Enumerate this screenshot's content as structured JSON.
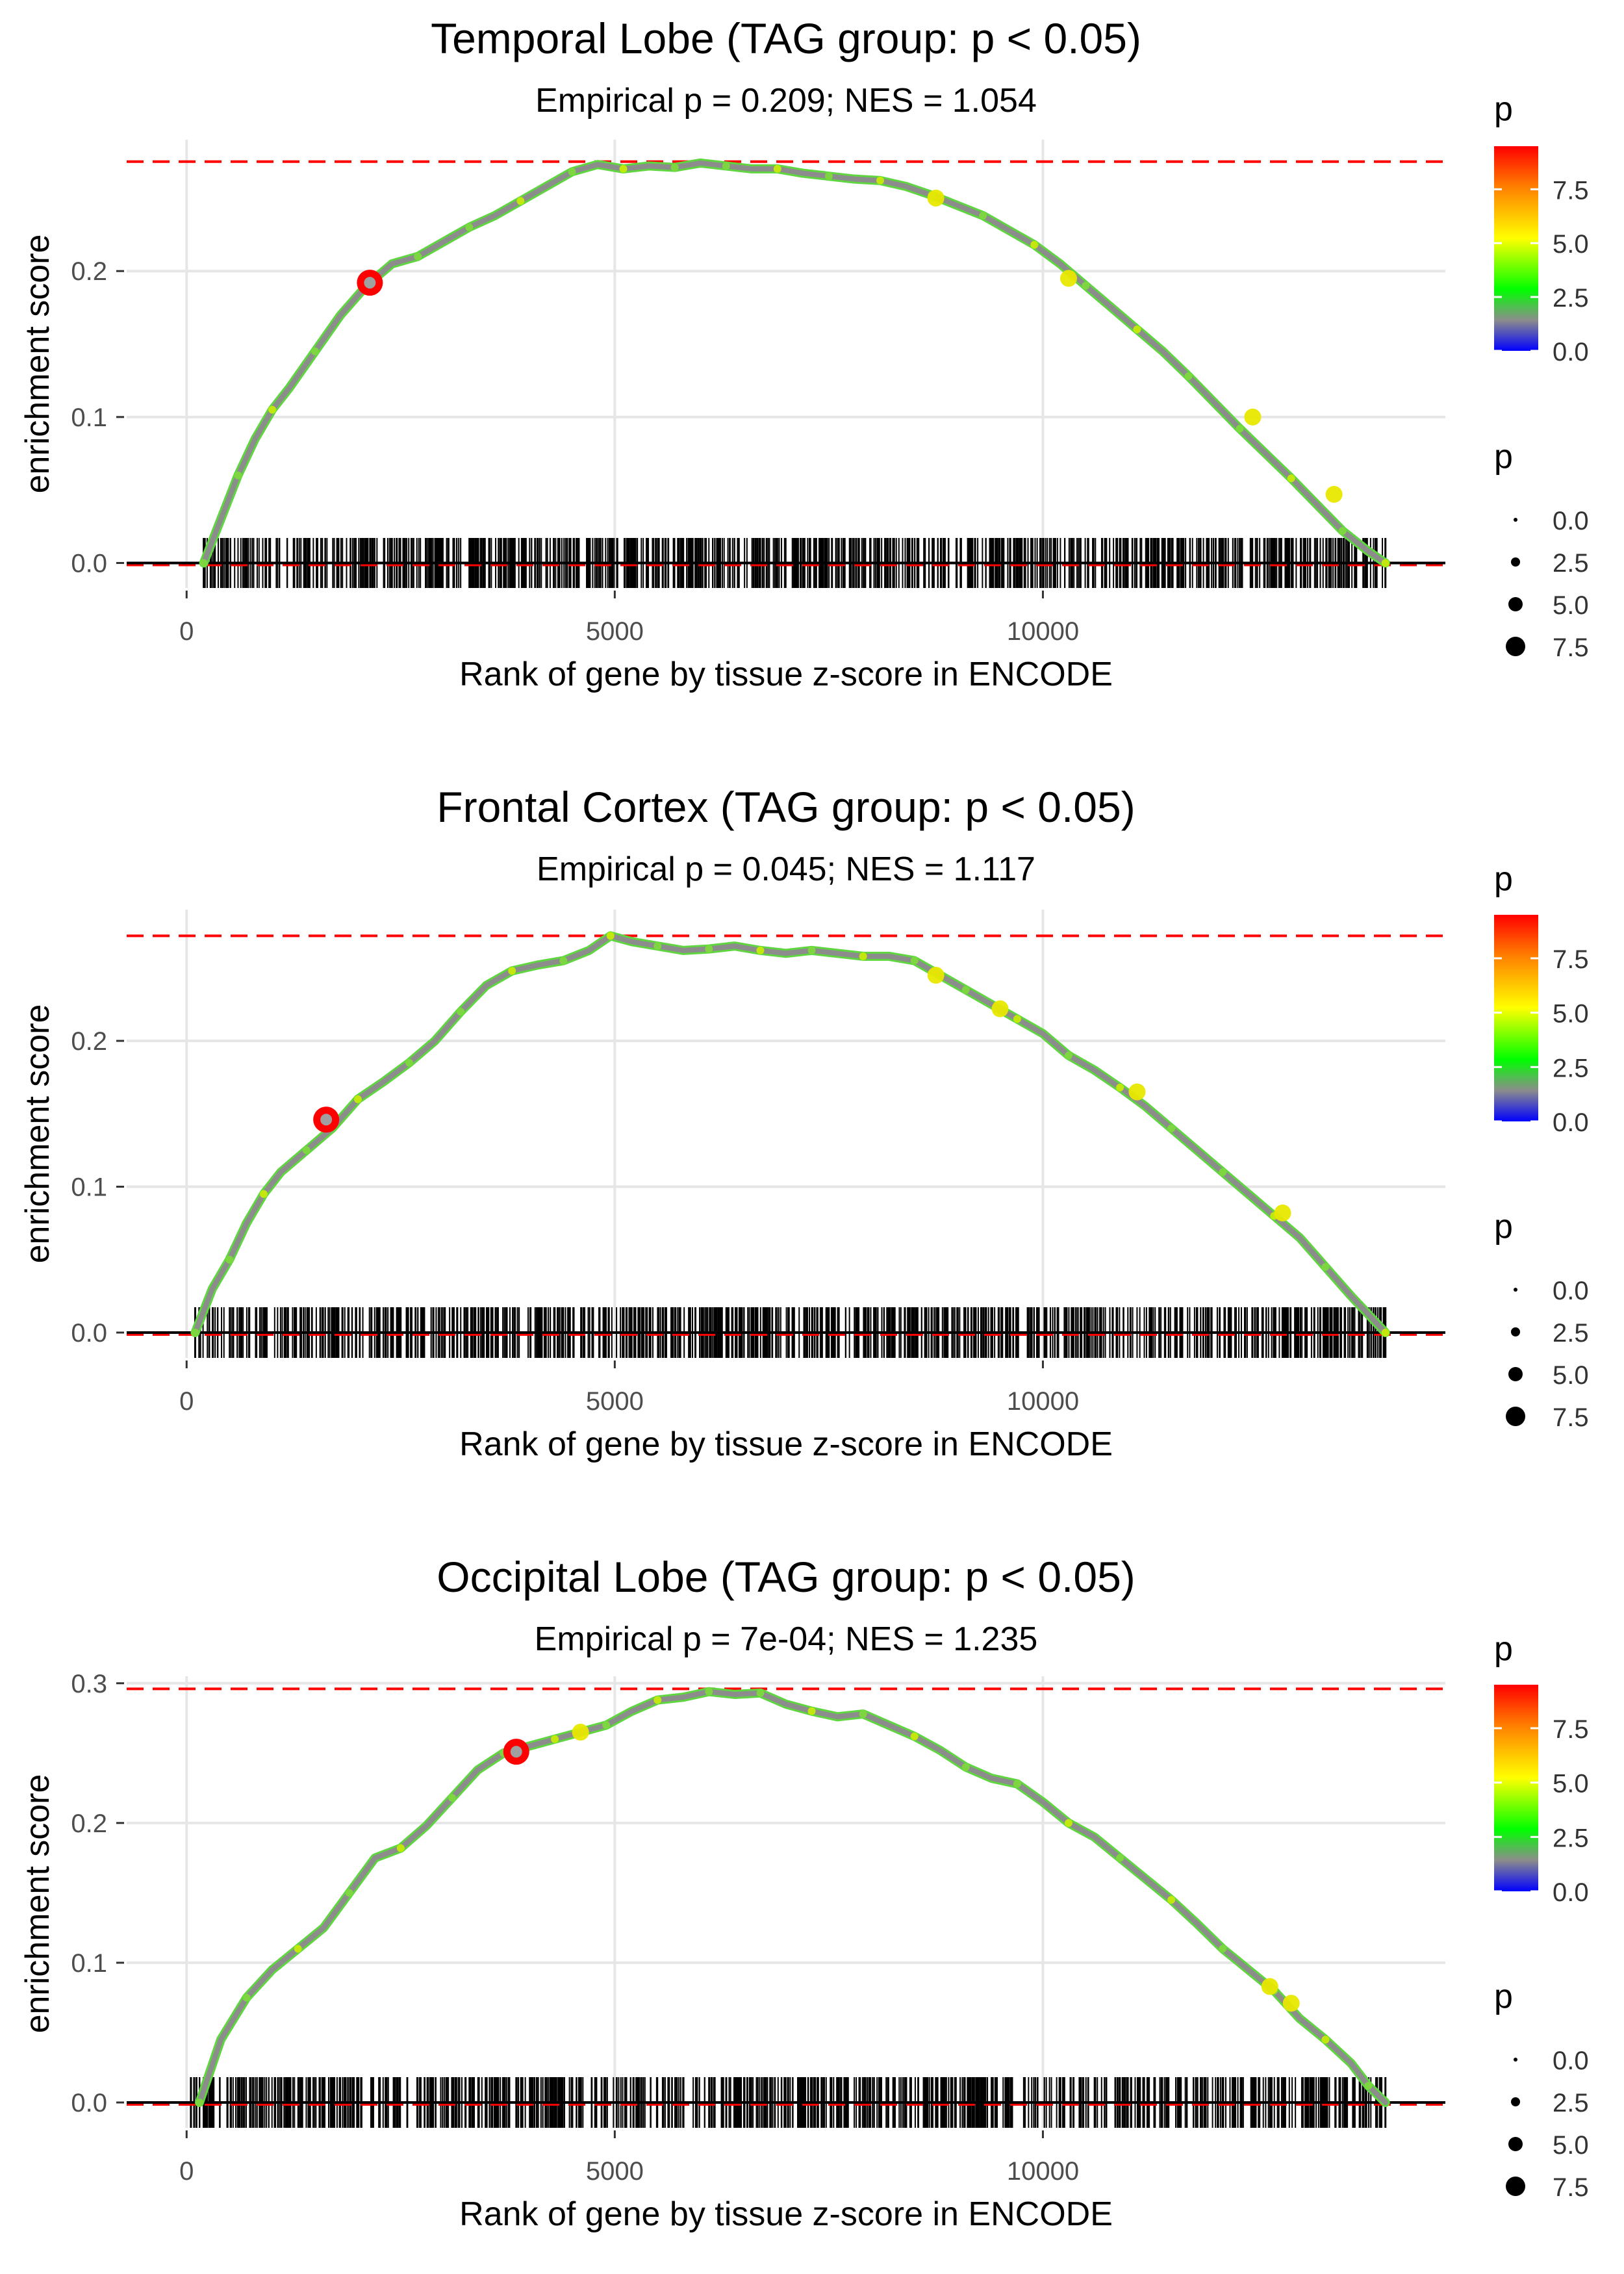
{
  "colors": {
    "background": "#ffffff",
    "grid": "#e6e6e6",
    "zero_line": "#000000",
    "max_line": "#ff0000",
    "curve": "#8c8c8c",
    "barcode": "#000000",
    "highlight_point": "#ff0000",
    "gradient": [
      "#0000ff",
      "#8c8c8c",
      "#00ff00",
      "#ffff00",
      "#ff8000",
      "#ff0000"
    ]
  },
  "chart_data": [
    {
      "type": "line",
      "title": "Temporal Lobe (TAG group: p < 0.05)",
      "subtitle": "Empirical p = 0.209; NES = 1.054",
      "xlabel": "Rank of gene by tissue z-score in ENCODE",
      "ylabel": "enrichment score",
      "xlim": [
        -700,
        14700
      ],
      "ylim": [
        -0.008,
        0.29
      ],
      "xticks": [
        0,
        5000,
        10000
      ],
      "xtick_labels": [
        "0",
        "5000",
        "10000"
      ],
      "yticks": [
        0.0,
        0.1,
        0.2
      ],
      "ytick_labels": [
        "0.0",
        "0.1",
        "0.2"
      ],
      "max_es": 0.275,
      "gene_range": [
        200,
        14000
      ],
      "series": [
        {
          "name": "running enrichment score",
          "x": [
            200,
            400,
            600,
            800,
            1000,
            1200,
            1500,
            1800,
            2100,
            2400,
            2700,
            3000,
            3300,
            3600,
            3900,
            4200,
            4500,
            4800,
            5100,
            5400,
            5700,
            6000,
            6300,
            6600,
            6900,
            7200,
            7500,
            7800,
            8100,
            8400,
            8700,
            9000,
            9300,
            9600,
            9900,
            10200,
            10500,
            10800,
            11100,
            11400,
            11700,
            12000,
            12300,
            12600,
            12900,
            13200,
            13500,
            13800,
            14000
          ],
          "y": [
            0.0,
            0.03,
            0.06,
            0.085,
            0.105,
            0.12,
            0.145,
            0.17,
            0.19,
            0.205,
            0.21,
            0.22,
            0.23,
            0.238,
            0.248,
            0.258,
            0.268,
            0.273,
            0.27,
            0.272,
            0.271,
            0.274,
            0.272,
            0.27,
            0.27,
            0.267,
            0.265,
            0.263,
            0.262,
            0.258,
            0.252,
            0.245,
            0.238,
            0.228,
            0.218,
            0.205,
            0.19,
            0.175,
            0.16,
            0.145,
            0.128,
            0.11,
            0.092,
            0.075,
            0.058,
            0.04,
            0.022,
            0.008,
            0.0
          ]
        }
      ],
      "highlight_points": [
        {
          "x": 2140,
          "y": 0.192,
          "p": 9.5
        }
      ],
      "yellow_points": [
        {
          "x": 8750,
          "y": 0.25
        },
        {
          "x": 10300,
          "y": 0.195
        },
        {
          "x": 12450,
          "y": 0.1
        },
        {
          "x": 13400,
          "y": 0.047
        }
      ],
      "legend_color": {
        "title": "p",
        "ticks": [
          0.0,
          2.5,
          5.0,
          7.5
        ],
        "tick_labels": [
          "0.0",
          "2.5",
          "5.0",
          "7.5"
        ],
        "range": [
          0,
          9.5
        ]
      },
      "legend_size": {
        "title": "p",
        "labels": [
          "0.0",
          "2.5",
          "5.0",
          "7.5"
        ]
      }
    },
    {
      "type": "line",
      "title": "Frontal Cortex (TAG group: p < 0.05)",
      "subtitle": "Empirical p = 0.045; NES = 1.117",
      "xlabel": "Rank of gene by tissue z-score in ENCODE",
      "ylabel": "enrichment score",
      "xlim": [
        -700,
        14700
      ],
      "ylim": [
        -0.008,
        0.29
      ],
      "xticks": [
        0,
        5000,
        10000
      ],
      "xtick_labels": [
        "0",
        "5000",
        "10000"
      ],
      "yticks": [
        0.0,
        0.1,
        0.2
      ],
      "ytick_labels": [
        "0.0",
        "0.1",
        "0.2"
      ],
      "max_es": 0.272,
      "gene_range": [
        100,
        14000
      ],
      "series": [
        {
          "name": "running enrichment score",
          "x": [
            100,
            300,
            500,
            700,
            900,
            1100,
            1400,
            1700,
            2000,
            2300,
            2600,
            2900,
            3200,
            3500,
            3800,
            4100,
            4400,
            4700,
            4950,
            5200,
            5500,
            5800,
            6100,
            6400,
            6700,
            7000,
            7300,
            7600,
            7900,
            8200,
            8500,
            8800,
            9100,
            9400,
            9700,
            10000,
            10300,
            10600,
            10900,
            11200,
            11500,
            11800,
            12100,
            12400,
            12700,
            13000,
            13300,
            13600,
            14000
          ],
          "y": [
            0.0,
            0.03,
            0.05,
            0.075,
            0.095,
            0.11,
            0.125,
            0.14,
            0.16,
            0.172,
            0.185,
            0.2,
            0.22,
            0.238,
            0.248,
            0.252,
            0.255,
            0.262,
            0.272,
            0.268,
            0.265,
            0.262,
            0.263,
            0.265,
            0.262,
            0.26,
            0.262,
            0.26,
            0.258,
            0.258,
            0.255,
            0.245,
            0.235,
            0.225,
            0.215,
            0.205,
            0.19,
            0.18,
            0.168,
            0.155,
            0.14,
            0.125,
            0.11,
            0.095,
            0.08,
            0.065,
            0.045,
            0.025,
            0.0
          ]
        }
      ],
      "highlight_points": [
        {
          "x": 1630,
          "y": 0.146,
          "p": 9.5
        }
      ],
      "yellow_points": [
        {
          "x": 8750,
          "y": 0.245
        },
        {
          "x": 9500,
          "y": 0.222
        },
        {
          "x": 11100,
          "y": 0.165
        },
        {
          "x": 12800,
          "y": 0.082
        }
      ]
    },
    {
      "type": "line",
      "title": "Occipital Lobe (TAG group: p < 0.05)",
      "subtitle": "Empirical p = 7e-04; NES = 1.235",
      "xlabel": "Rank of gene by tissue z-score in ENCODE",
      "ylabel": "enrichment score",
      "xlim": [
        -700,
        14700
      ],
      "ylim": [
        -0.008,
        0.305
      ],
      "xticks": [
        0,
        5000,
        10000
      ],
      "xtick_labels": [
        "0",
        "5000",
        "10000"
      ],
      "yticks": [
        0.0,
        0.1,
        0.2,
        0.3
      ],
      "ytick_labels": [
        "0.0",
        "0.1",
        "0.2",
        "0.3"
      ],
      "max_es": 0.296,
      "gene_range": [
        50,
        14000
      ],
      "series": [
        {
          "name": "running enrichment score",
          "x": [
            150,
            400,
            700,
            1000,
            1300,
            1600,
            1900,
            2200,
            2500,
            2800,
            3100,
            3400,
            3700,
            4000,
            4300,
            4600,
            4900,
            5200,
            5500,
            5800,
            6100,
            6400,
            6700,
            7000,
            7300,
            7600,
            7900,
            8200,
            8500,
            8800,
            9100,
            9400,
            9700,
            10000,
            10300,
            10600,
            10900,
            11200,
            11500,
            11800,
            12100,
            12400,
            12700,
            13000,
            13300,
            13600,
            13800,
            14000
          ],
          "y": [
            0.0,
            0.045,
            0.075,
            0.095,
            0.11,
            0.125,
            0.15,
            0.175,
            0.182,
            0.198,
            0.218,
            0.238,
            0.25,
            0.255,
            0.26,
            0.265,
            0.27,
            0.28,
            0.288,
            0.29,
            0.294,
            0.292,
            0.293,
            0.285,
            0.28,
            0.276,
            0.278,
            0.27,
            0.262,
            0.252,
            0.24,
            0.232,
            0.228,
            0.215,
            0.2,
            0.19,
            0.175,
            0.16,
            0.145,
            0.128,
            0.11,
            0.095,
            0.08,
            0.06,
            0.045,
            0.028,
            0.012,
            0.0
          ]
        }
      ],
      "highlight_points": [
        {
          "x": 3850,
          "y": 0.251,
          "p": 9.5
        }
      ],
      "yellow_points": [
        {
          "x": 4600,
          "y": 0.265
        },
        {
          "x": 12650,
          "y": 0.083
        },
        {
          "x": 12900,
          "y": 0.071
        }
      ]
    }
  ]
}
